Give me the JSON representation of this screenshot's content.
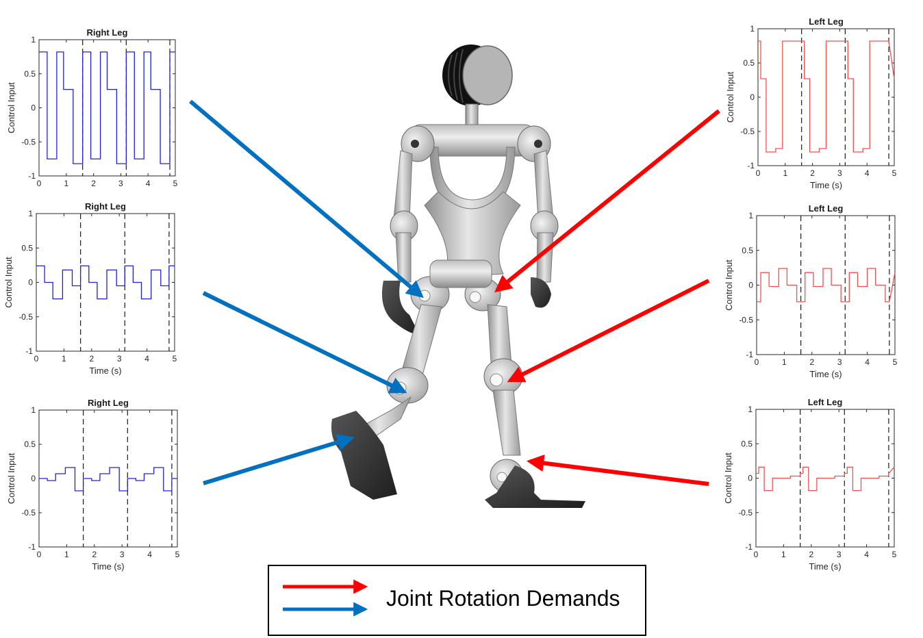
{
  "colors": {
    "right_leg": "#2020d8",
    "left_leg": "#f05050",
    "arrow_red": "#ff0000",
    "arrow_blue": "#0070c0",
    "robot_light": "#d4d4d4",
    "robot_dark": "#3a3a3a"
  },
  "legend": {
    "label": "Joint Rotation Demands",
    "entries": [
      {
        "color": "red",
        "icon": "red-arrow-icon"
      },
      {
        "color": "blue",
        "icon": "blue-arrow-icon"
      }
    ]
  },
  "robot": {
    "icon": "biped-robot-illustration"
  },
  "chart_data": [
    {
      "type": "line",
      "title": "Right Leg",
      "xlabel": "",
      "ylabel": "Control Input",
      "xlim": [
        0,
        5
      ],
      "ylim": [
        -1,
        1
      ],
      "xticks": [
        0,
        1,
        2,
        3,
        4,
        5
      ],
      "yticks": [
        -1,
        -0.5,
        0,
        0.5,
        1
      ],
      "ytick_labels": [
        "-1",
        "-0.5",
        "0",
        "0.5",
        "1"
      ],
      "vlines": [
        1.6,
        3.2,
        4.8
      ],
      "series_color": "right_leg",
      "x": [
        0,
        0.3,
        0.3,
        0.65,
        0.65,
        0.9,
        0.9,
        1.25,
        1.25,
        1.6,
        1.6,
        1.9,
        1.9,
        2.25,
        2.25,
        2.5,
        2.5,
        2.85,
        2.85,
        3.2,
        3.2,
        3.5,
        3.5,
        3.85,
        3.85,
        4.1,
        4.1,
        4.45,
        4.45,
        4.8,
        4.8,
        5.0
      ],
      "y": [
        0.82,
        0.82,
        -0.75,
        -0.75,
        0.82,
        0.82,
        0.27,
        0.27,
        -0.82,
        -0.82,
        0.82,
        0.82,
        -0.75,
        -0.75,
        0.82,
        0.82,
        0.27,
        0.27,
        -0.82,
        -0.82,
        0.82,
        0.82,
        -0.75,
        -0.75,
        0.82,
        0.82,
        0.27,
        0.27,
        -0.82,
        -0.82,
        0.82,
        0.82
      ]
    },
    {
      "type": "line",
      "title": "Right Leg",
      "xlabel": "Time (s)",
      "ylabel": "Control Input",
      "xlim": [
        0,
        5
      ],
      "ylim": [
        -1,
        1
      ],
      "xticks": [
        0,
        1,
        2,
        3,
        4,
        5
      ],
      "yticks": [
        -1,
        -0.5,
        0,
        0.5,
        1
      ],
      "ytick_labels": [
        "-1",
        "-0.5",
        "0",
        "0.5",
        "1"
      ],
      "vlines": [
        1.6,
        3.2,
        4.8
      ],
      "series_color": "right_leg",
      "x": [
        0,
        0.3,
        0.3,
        0.6,
        0.6,
        0.95,
        0.95,
        1.3,
        1.3,
        1.6,
        1.6,
        1.9,
        1.9,
        2.2,
        2.2,
        2.55,
        2.55,
        2.9,
        2.9,
        3.2,
        3.2,
        3.5,
        3.5,
        3.8,
        3.8,
        4.15,
        4.15,
        4.5,
        4.5,
        4.8,
        4.8,
        5.0
      ],
      "y": [
        0.24,
        0.24,
        0.0,
        0.0,
        -0.24,
        -0.24,
        0.18,
        0.18,
        -0.05,
        -0.05,
        0.24,
        0.24,
        0.0,
        0.0,
        -0.24,
        -0.24,
        0.18,
        0.18,
        -0.05,
        -0.05,
        0.24,
        0.24,
        0.0,
        0.0,
        -0.24,
        -0.24,
        0.18,
        0.18,
        -0.05,
        -0.05,
        0.24,
        0.24
      ]
    },
    {
      "type": "line",
      "title": "Right Leg",
      "xlabel": "Time (s)",
      "ylabel": "Control Input",
      "xlim": [
        0,
        5
      ],
      "ylim": [
        -1,
        1
      ],
      "xticks": [
        0,
        1,
        2,
        3,
        4,
        5
      ],
      "yticks": [
        -1,
        -0.5,
        0,
        0.5,
        1
      ],
      "ytick_labels": [
        "-1",
        "-0.5",
        "0",
        "0.5",
        "1"
      ],
      "vlines": [
        1.6,
        3.2,
        4.8
      ],
      "series_color": "right_leg",
      "x": [
        0,
        0.3,
        0.3,
        0.6,
        0.6,
        0.95,
        0.95,
        1.3,
        1.3,
        1.6,
        1.6,
        1.9,
        1.9,
        2.2,
        2.2,
        2.55,
        2.55,
        2.9,
        2.9,
        3.2,
        3.2,
        3.5,
        3.5,
        3.8,
        3.8,
        4.15,
        4.15,
        4.5,
        4.5,
        4.8,
        4.8,
        5.0
      ],
      "y": [
        0.0,
        0.0,
        -0.03,
        -0.03,
        0.07,
        0.07,
        0.16,
        0.16,
        -0.18,
        -0.18,
        0.0,
        0.0,
        -0.03,
        -0.03,
        0.07,
        0.07,
        0.16,
        0.16,
        -0.18,
        -0.18,
        0.0,
        0.0,
        -0.03,
        -0.03,
        0.07,
        0.07,
        0.16,
        0.16,
        -0.18,
        -0.18,
        0.0,
        0.0
      ]
    },
    {
      "type": "line",
      "title": "Left Leg",
      "xlabel": "Time (s)",
      "ylabel": "Control Input",
      "xlim": [
        0,
        5
      ],
      "ylim": [
        -1,
        1
      ],
      "xticks": [
        0,
        1,
        2,
        3,
        4,
        5
      ],
      "yticks": [
        -1,
        -0.5,
        0,
        0.5,
        1
      ],
      "ytick_labels": [
        "-1",
        "-0.5",
        "0",
        "0.5",
        "1"
      ],
      "vlines": [
        1.6,
        3.2,
        4.8
      ],
      "series_color": "left_leg",
      "x": [
        0,
        0.1,
        0.1,
        0.3,
        0.3,
        0.65,
        0.65,
        0.9,
        0.9,
        1.25,
        1.25,
        1.6,
        1.6,
        1.7,
        1.7,
        1.9,
        1.9,
        2.25,
        2.25,
        2.5,
        2.5,
        2.85,
        2.85,
        3.2,
        3.2,
        3.3,
        3.3,
        3.5,
        3.5,
        3.85,
        3.85,
        4.1,
        4.1,
        4.45,
        4.45,
        4.8,
        4.8,
        5.0
      ],
      "y": [
        0.82,
        0.82,
        0.27,
        0.27,
        -0.8,
        -0.8,
        -0.75,
        -0.75,
        0.82,
        0.82,
        0.82,
        0.82,
        0.82,
        0.82,
        0.27,
        0.27,
        -0.8,
        -0.8,
        -0.75,
        -0.75,
        0.82,
        0.82,
        0.82,
        0.82,
        0.82,
        0.82,
        0.27,
        0.27,
        -0.8,
        -0.8,
        -0.75,
        -0.75,
        0.82,
        0.82,
        0.82,
        0.82,
        0.82,
        0.27
      ]
    },
    {
      "type": "line",
      "title": "Left Leg",
      "xlabel": "Time (s)",
      "ylabel": "Control Input",
      "xlim": [
        0,
        5
      ],
      "ylim": [
        -1,
        1
      ],
      "xticks": [
        0,
        1,
        2,
        3,
        4,
        5
      ],
      "yticks": [
        -1,
        -0.5,
        0,
        0.5,
        1
      ],
      "ytick_labels": [
        "-1",
        "-0.5",
        "0",
        "0.5",
        "1"
      ],
      "vlines": [
        1.6,
        3.2,
        4.8
      ],
      "series_color": "left_leg",
      "x": [
        0,
        0.15,
        0.15,
        0.45,
        0.45,
        0.8,
        0.8,
        1.1,
        1.1,
        1.45,
        1.45,
        1.6,
        1.6,
        1.75,
        1.75,
        2.05,
        2.05,
        2.4,
        2.4,
        2.7,
        2.7,
        3.05,
        3.05,
        3.2,
        3.2,
        3.35,
        3.35,
        3.65,
        3.65,
        4.0,
        4.0,
        4.3,
        4.3,
        4.65,
        4.65,
        4.8,
        4.8,
        5.0
      ],
      "y": [
        -0.24,
        -0.24,
        0.18,
        0.18,
        -0.02,
        -0.02,
        0.24,
        0.24,
        0.0,
        0.0,
        -0.24,
        -0.24,
        -0.24,
        -0.24,
        0.18,
        0.18,
        -0.02,
        -0.02,
        0.24,
        0.24,
        0.0,
        0.0,
        -0.24,
        -0.24,
        -0.24,
        -0.24,
        0.18,
        0.18,
        -0.02,
        -0.02,
        0.24,
        0.24,
        0.0,
        0.0,
        -0.24,
        -0.24,
        -0.24,
        0.18
      ]
    },
    {
      "type": "line",
      "title": "Left Leg",
      "xlabel": "Time (s)",
      "ylabel": "Control Input",
      "xlim": [
        0,
        5
      ],
      "ylim": [
        -1,
        1
      ],
      "xticks": [
        0,
        1,
        2,
        3,
        4,
        5
      ],
      "yticks": [
        -1,
        -0.5,
        0,
        0.5,
        1
      ],
      "ytick_labels": [
        "-1",
        "-0.5",
        "0",
        "0.5",
        "1"
      ],
      "vlines": [
        1.6,
        3.2,
        4.8
      ],
      "series_color": "left_leg",
      "x": [
        0,
        0.1,
        0.1,
        0.3,
        0.3,
        0.6,
        0.6,
        0.9,
        0.9,
        1.25,
        1.25,
        1.6,
        1.6,
        1.7,
        1.7,
        1.9,
        1.9,
        2.2,
        2.2,
        2.5,
        2.5,
        2.85,
        2.85,
        3.2,
        3.2,
        3.3,
        3.3,
        3.5,
        3.5,
        3.8,
        3.8,
        4.1,
        4.1,
        4.45,
        4.45,
        4.8,
        4.8,
        5.0
      ],
      "y": [
        0.07,
        0.07,
        0.16,
        0.16,
        -0.18,
        -0.18,
        0.0,
        0.0,
        0.0,
        0.0,
        0.03,
        0.03,
        0.07,
        0.07,
        0.16,
        0.16,
        -0.18,
        -0.18,
        0.0,
        0.0,
        0.0,
        0.0,
        0.03,
        0.03,
        0.07,
        0.07,
        0.16,
        0.16,
        -0.18,
        -0.18,
        0.0,
        0.0,
        0.0,
        0.0,
        0.03,
        0.03,
        0.07,
        0.16
      ]
    }
  ]
}
